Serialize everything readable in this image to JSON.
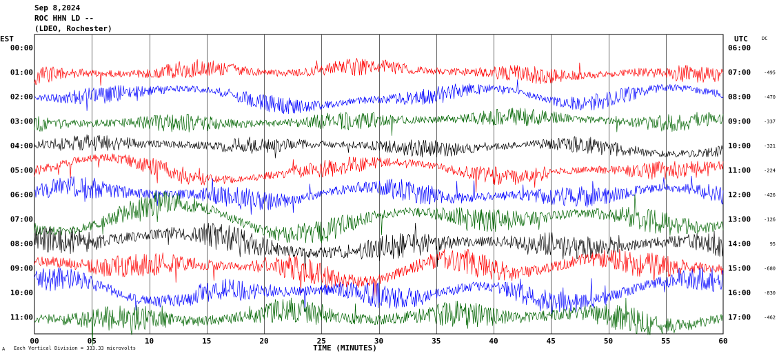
{
  "header": {
    "date": "Sep 8,2024",
    "station": "ROC HHN LD --",
    "network": "(LDEO, Rochester)"
  },
  "chart_data": {
    "type": "line",
    "left_axis_label": "EST",
    "right_axis_label": "UTC",
    "dc_label": "DC",
    "xlabel": "TIME (MINUTES)",
    "xlim": [
      0,
      60
    ],
    "x_ticks": [
      "00",
      "05",
      "10",
      "15",
      "20",
      "25",
      "30",
      "35",
      "40",
      "45",
      "50",
      "55",
      "60"
    ],
    "footer_note": "Each Vertical Division =  333.33 microvolts",
    "corner_mark": "A",
    "series": [
      {
        "est": "00:00",
        "utc": "06:00",
        "dc": "",
        "color": "#000000",
        "amp": 0
      },
      {
        "est": "01:00",
        "utc": "07:00",
        "dc": "-495",
        "color": "#ff0000",
        "amp": 1.0
      },
      {
        "est": "02:00",
        "utc": "08:00",
        "dc": "-470",
        "color": "#0000ff",
        "amp": 1.0
      },
      {
        "est": "03:00",
        "utc": "09:00",
        "dc": "-337",
        "color": "#006400",
        "amp": 1.05
      },
      {
        "est": "04:00",
        "utc": "10:00",
        "dc": "-321",
        "color": "#000000",
        "amp": 1.0
      },
      {
        "est": "05:00",
        "utc": "11:00",
        "dc": "-224",
        "color": "#ff0000",
        "amp": 1.05
      },
      {
        "est": "06:00",
        "utc": "12:00",
        "dc": "-426",
        "color": "#0000ff",
        "amp": 1.25
      },
      {
        "est": "07:00",
        "utc": "13:00",
        "dc": "-126",
        "color": "#006400",
        "amp": 1.35
      },
      {
        "est": "08:00",
        "utc": "14:00",
        "dc": "95",
        "color": "#000000",
        "amp": 1.5
      },
      {
        "est": "09:00",
        "utc": "15:00",
        "dc": "-680",
        "color": "#ff0000",
        "amp": 1.5
      },
      {
        "est": "10:00",
        "utc": "16:00",
        "dc": "-830",
        "color": "#0000ff",
        "amp": 1.4
      },
      {
        "est": "11:00",
        "utc": "17:00",
        "dc": "-462",
        "color": "#006400",
        "amp": 1.5
      }
    ]
  }
}
